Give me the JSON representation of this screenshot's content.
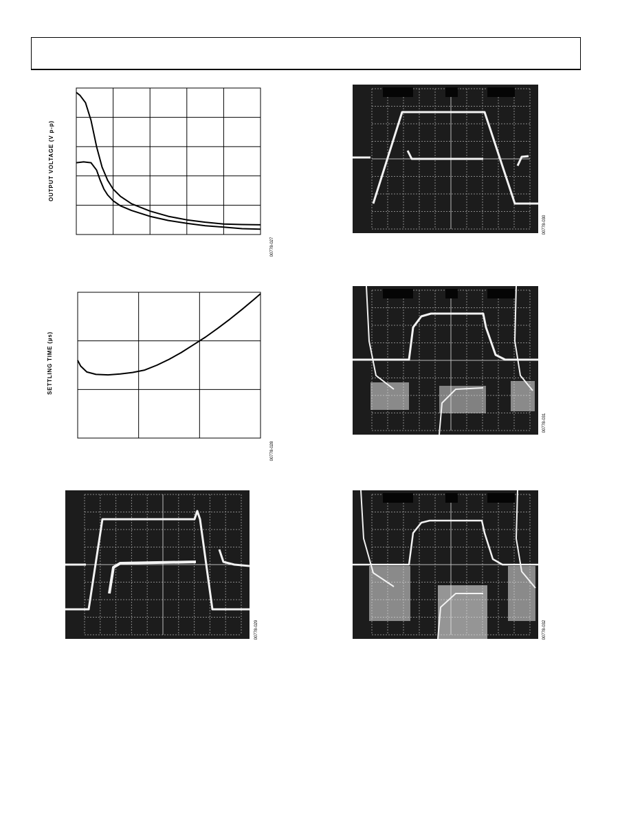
{
  "page": {
    "header_color": "#000000",
    "scope_bg": "#1c1c1c",
    "scope_trace": "#f2f2f2"
  },
  "figures": [
    {
      "id": "fig1",
      "ylabel": "OUTPUT VOLTAGE (V p-p)",
      "code": "00778-027"
    },
    {
      "id": "fig2",
      "ylabel": "SETTLING TIME (µs)",
      "code": "00778-028"
    },
    {
      "id": "fig3",
      "code": "00778-029"
    },
    {
      "id": "fig4",
      "code": "00778-030"
    },
    {
      "id": "fig5",
      "code": "00778-031"
    },
    {
      "id": "fig6",
      "code": "00778-032"
    }
  ],
  "chart_data": [
    {
      "type": "line",
      "ylabel": "OUTPUT VOLTAGE (V p-p)",
      "xlim": [
        0,
        5
      ],
      "ylim": [
        0,
        5
      ],
      "grid": true,
      "series": [
        {
          "x": [
            0,
            0.1,
            0.25,
            0.4,
            0.55,
            0.7,
            0.85,
            1.0,
            1.2,
            1.5,
            2.0,
            2.5,
            3.0,
            3.5,
            4.0,
            4.5,
            5.0
          ],
          "values": [
            4.85,
            4.75,
            4.5,
            3.9,
            3.0,
            2.3,
            1.85,
            1.55,
            1.3,
            1.05,
            0.8,
            0.62,
            0.5,
            0.42,
            0.36,
            0.34,
            0.33
          ]
        },
        {
          "x": [
            0,
            0.2,
            0.4,
            0.55,
            0.65,
            0.75,
            0.85,
            1.0,
            1.2,
            1.5,
            2.0,
            2.5,
            3.0,
            3.5,
            4.0,
            4.5,
            5.0
          ],
          "values": [
            2.45,
            2.48,
            2.45,
            2.2,
            1.85,
            1.55,
            1.35,
            1.15,
            0.98,
            0.82,
            0.62,
            0.48,
            0.38,
            0.3,
            0.25,
            0.2,
            0.18
          ]
        }
      ]
    },
    {
      "type": "line",
      "ylabel": "SETTLING TIME (µs)",
      "xlim": [
        0,
        3
      ],
      "ylim": [
        0,
        3
      ],
      "grid": true,
      "series": [
        {
          "x": [
            0,
            0.05,
            0.15,
            0.3,
            0.5,
            0.7,
            0.9,
            1.1,
            1.3,
            1.5,
            1.7,
            1.9,
            2.1,
            2.3,
            2.5,
            2.7,
            2.9,
            3.0
          ],
          "values": [
            1.6,
            1.48,
            1.36,
            1.31,
            1.3,
            1.32,
            1.35,
            1.4,
            1.5,
            1.62,
            1.76,
            1.92,
            2.08,
            2.26,
            2.45,
            2.65,
            2.86,
            2.97
          ]
        }
      ]
    }
  ]
}
